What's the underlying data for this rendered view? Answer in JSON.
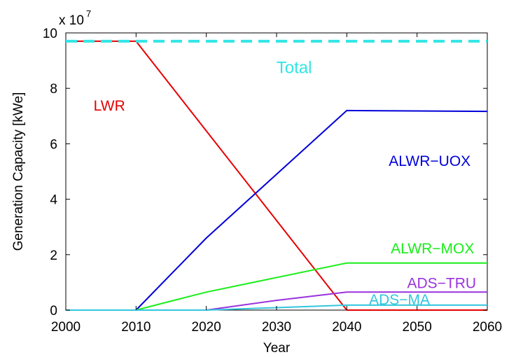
{
  "chart_data": {
    "type": "line",
    "title": "",
    "xlabel": "Year",
    "ylabel": "Generation Capacity [kWe]",
    "y_multiplier_label": "x 10",
    "y_multiplier_exponent": "7",
    "xlim": [
      2000,
      2060
    ],
    "ylim": [
      0,
      10
    ],
    "xticks": [
      "2000",
      "2010",
      "2020",
      "2030",
      "2040",
      "2050",
      "2060"
    ],
    "yticks": [
      "0",
      "2",
      "4",
      "6",
      "8",
      "10"
    ],
    "grid": false,
    "legend": "none (series labelled inline)",
    "series": [
      {
        "name": "Total",
        "color": "#33e6e6",
        "style": "dashed",
        "x": [
          2000,
          2060
        ],
        "y": [
          9.7,
          9.7
        ]
      },
      {
        "name": "LWR",
        "color": "#e60000",
        "style": "solid",
        "x": [
          2000,
          2010,
          2040,
          2060
        ],
        "y": [
          9.7,
          9.7,
          0,
          0
        ]
      },
      {
        "name": "ALWR−UOX",
        "color": "#0000d9",
        "style": "solid",
        "x": [
          2000,
          2010,
          2020,
          2040,
          2060
        ],
        "y": [
          0,
          0,
          2.6,
          7.2,
          7.17
        ]
      },
      {
        "name": "ALWR−MOX",
        "color": "#1aee1a",
        "style": "solid",
        "x": [
          2000,
          2010,
          2020,
          2040,
          2060
        ],
        "y": [
          0,
          0,
          0.65,
          1.7,
          1.7
        ]
      },
      {
        "name": "ADS−TRU",
        "color": "#9933dd",
        "style": "solid",
        "x": [
          2000,
          2020,
          2030,
          2040,
          2060
        ],
        "y": [
          0,
          0,
          0.35,
          0.65,
          0.65
        ]
      },
      {
        "name": "ADS−MA",
        "color": "#33c6dd",
        "style": "solid",
        "x": [
          2000,
          2020,
          2040,
          2060
        ],
        "y": [
          0,
          0,
          0.18,
          0.18
        ]
      }
    ]
  }
}
